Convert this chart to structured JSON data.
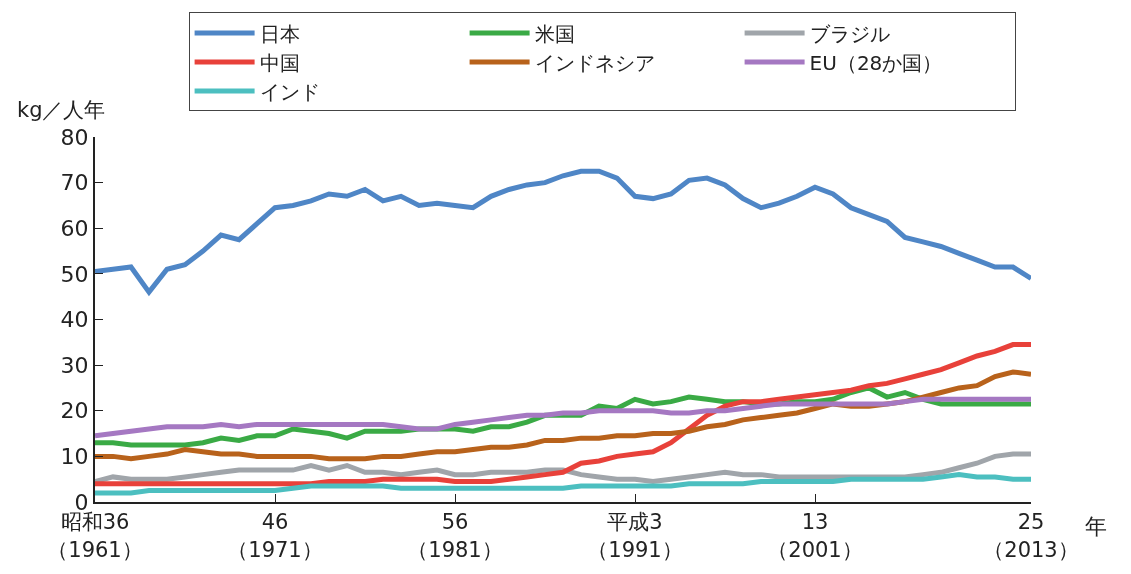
{
  "chart_data": {
    "type": "line",
    "ylabel": "kg／人年",
    "annotations": [
      "年"
    ],
    "categories": [
      "昭和36\n（1961）",
      null,
      null,
      null,
      null,
      null,
      null,
      null,
      null,
      null,
      "46\n（1971）",
      null,
      null,
      null,
      null,
      null,
      null,
      null,
      null,
      null,
      "56\n（1981）",
      null,
      null,
      null,
      null,
      null,
      null,
      null,
      null,
      null,
      "平成3\n（1991）",
      null,
      null,
      null,
      null,
      null,
      null,
      null,
      null,
      null,
      "13\n（2001）",
      null,
      null,
      null,
      null,
      null,
      null,
      null,
      null,
      null,
      null,
      null,
      "25\n（2013）"
    ],
    "ylim": [
      0,
      80
    ],
    "yticks": [
      0,
      10,
      20,
      30,
      40,
      50,
      60,
      70,
      80
    ],
    "legend": "top",
    "line_style": "solid",
    "series": [
      {
        "name": "日本",
        "color": "#4f86c6",
        "values": [
          50.5,
          51,
          51.5,
          46,
          51,
          52,
          55,
          58.5,
          57.5,
          61,
          64.5,
          65,
          66,
          67.5,
          67,
          68.5,
          66,
          67,
          65,
          65.5,
          65,
          64.5,
          67,
          68.5,
          69.5,
          70,
          71.5,
          72.5,
          72.5,
          71,
          67,
          66.5,
          67.5,
          70.5,
          71,
          69.5,
          66.5,
          64.5,
          65.5,
          67,
          69,
          67.5,
          64.5,
          63,
          61.5,
          58,
          57,
          56,
          54.5,
          53,
          51.5,
          51.5,
          49
        ]
      },
      {
        "name": "米国",
        "color": "#3aaa45",
        "values": [
          13,
          13,
          12.5,
          12.5,
          12.5,
          12.5,
          13,
          14,
          13.5,
          14.5,
          14.5,
          16,
          15.5,
          15,
          14,
          15.5,
          15.5,
          15.5,
          16,
          16,
          16,
          15.5,
          16.5,
          16.5,
          17.5,
          19,
          19,
          19,
          21,
          20.5,
          22.5,
          21.5,
          22,
          23,
          22.5,
          22,
          22,
          21.5,
          21.5,
          22,
          22,
          22.5,
          24,
          25,
          23,
          24,
          22.5,
          21.5,
          21.5,
          21.5,
          21.5,
          21.5,
          21.5
        ]
      },
      {
        "name": "ブラジル",
        "color": "#a0a5aa",
        "values": [
          4.5,
          5.5,
          5,
          5,
          5,
          5.5,
          6,
          6.5,
          7,
          7,
          7,
          7,
          8,
          7,
          8,
          6.5,
          6.5,
          6,
          6.5,
          7,
          6,
          6,
          6.5,
          6.5,
          6.5,
          7,
          7,
          6,
          5.5,
          5,
          5,
          4.5,
          5,
          5.5,
          6,
          6.5,
          6,
          6,
          5.5,
          5.5,
          5.5,
          5.5,
          5.5,
          5.5,
          5.5,
          5.5,
          6,
          6.5,
          7.5,
          8.5,
          10,
          10.5,
          10.5
        ]
      },
      {
        "name": "中国",
        "color": "#e8413a",
        "values": [
          4,
          4,
          4,
          4,
          4,
          4,
          4,
          4,
          4,
          4,
          4,
          4,
          4,
          4.5,
          4.5,
          4.5,
          5,
          5,
          5,
          5,
          4.5,
          4.5,
          4.5,
          5,
          5.5,
          6,
          6.5,
          8.5,
          9,
          10,
          10.5,
          11,
          13,
          16,
          19,
          21,
          22,
          22,
          22.5,
          23,
          23.5,
          24,
          24.5,
          25.5,
          26,
          27,
          28,
          29,
          30.5,
          32,
          33,
          34.5,
          34.5
        ]
      },
      {
        "name": "インドネシア",
        "color": "#b8621b",
        "values": [
          10,
          10,
          9.5,
          10,
          10.5,
          11.5,
          11,
          10.5,
          10.5,
          10,
          10,
          10,
          10,
          9.5,
          9.5,
          9.5,
          10,
          10,
          10.5,
          11,
          11,
          11.5,
          12,
          12,
          12.5,
          13.5,
          13.5,
          14,
          14,
          14.5,
          14.5,
          15,
          15,
          15.5,
          16.5,
          17,
          18,
          18.5,
          19,
          19.5,
          20.5,
          21.5,
          21,
          21,
          21.5,
          22,
          23,
          24,
          25,
          25.5,
          27.5,
          28.5,
          28
        ]
      },
      {
        "name": "EU（28か国）",
        "color": "#a578c2",
        "values": [
          14.5,
          15,
          15.5,
          16,
          16.5,
          16.5,
          16.5,
          17,
          16.5,
          17,
          17,
          17,
          17,
          17,
          17,
          17,
          17,
          16.5,
          16,
          16,
          17,
          17.5,
          18,
          18.5,
          19,
          19,
          19.5,
          19.5,
          20,
          20,
          20,
          20,
          19.5,
          19.5,
          20,
          20,
          20.5,
          21,
          21.5,
          21.5,
          21.5,
          21.5,
          21.5,
          21.5,
          21.5,
          22,
          22.5,
          22.5,
          22.5,
          22.5,
          22.5,
          22.5,
          22.5
        ]
      },
      {
        "name": "インド",
        "color": "#4cbfc0",
        "values": [
          2,
          2,
          2,
          2.5,
          2.5,
          2.5,
          2.5,
          2.5,
          2.5,
          2.5,
          2.5,
          3,
          3.5,
          3.5,
          3.5,
          3.5,
          3.5,
          3,
          3,
          3,
          3,
          3,
          3,
          3,
          3,
          3,
          3,
          3.5,
          3.5,
          3.5,
          3.5,
          3.5,
          3.5,
          4,
          4,
          4,
          4,
          4.5,
          4.5,
          4.5,
          4.5,
          4.5,
          5,
          5,
          5,
          5,
          5,
          5.5,
          6,
          5.5,
          5.5,
          5,
          5
        ]
      }
    ]
  }
}
